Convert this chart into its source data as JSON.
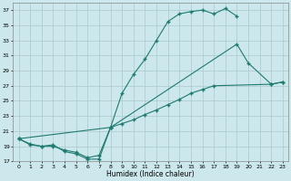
{
  "xlabel": "Humidex (Indice chaleur)",
  "bg_color": "#cce8ec",
  "line_color": "#1e7a70",
  "grid_color": "#aac8cc",
  "xlim": [
    -0.5,
    23.5
  ],
  "ylim": [
    17,
    38
  ],
  "yticks": [
    17,
    19,
    21,
    23,
    25,
    27,
    29,
    31,
    33,
    35,
    37
  ],
  "xticks": [
    0,
    1,
    2,
    3,
    4,
    5,
    6,
    7,
    8,
    9,
    10,
    11,
    12,
    13,
    14,
    15,
    16,
    17,
    18,
    19,
    20,
    21,
    22,
    23
  ],
  "line1_x": [
    0,
    1,
    2,
    3,
    4,
    5,
    6,
    7,
    8,
    9,
    10,
    11,
    12,
    13,
    14,
    15,
    16,
    17,
    18,
    19
  ],
  "line1_y": [
    20.0,
    19.2,
    19.0,
    19.2,
    18.3,
    18.0,
    17.3,
    17.3,
    21.5,
    26.0,
    28.5,
    30.5,
    33.0,
    35.5,
    36.5,
    36.8,
    37.0,
    36.5,
    37.2,
    36.2
  ],
  "line2_x": [
    0,
    1,
    2,
    3,
    4,
    5,
    6,
    7,
    8,
    19,
    20,
    22,
    23
  ],
  "line2_y": [
    20.0,
    19.3,
    19.0,
    19.0,
    18.5,
    18.2,
    17.5,
    17.8,
    21.5,
    32.5,
    30.0,
    27.2,
    27.5
  ],
  "line3_x": [
    0,
    8,
    9,
    10,
    11,
    12,
    13,
    14,
    15,
    16,
    17,
    22,
    23
  ],
  "line3_y": [
    20.0,
    21.5,
    22.0,
    22.5,
    23.2,
    23.8,
    24.5,
    25.2,
    26.0,
    26.5,
    27.0,
    27.2,
    27.5
  ]
}
